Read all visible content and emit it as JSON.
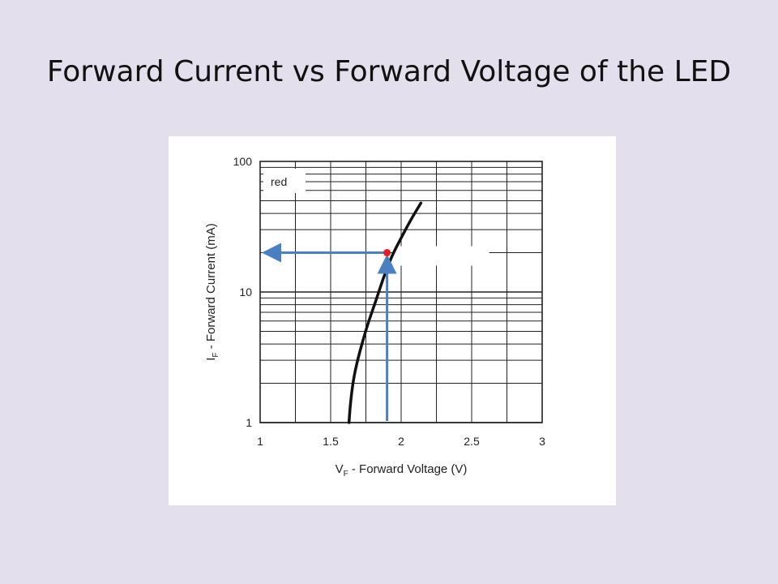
{
  "slide": {
    "title": "Forward Current vs Forward Voltage of the LED"
  },
  "chart_data": {
    "type": "line",
    "xlabel": "V_F - Forward Voltage (V)",
    "ylabel": "I_F - Forward Current (mA)",
    "xlabel_main": "V",
    "xlabel_sub": "F",
    "xlabel_rest": " - Forward Voltage (V)",
    "ylabel_main": "I",
    "ylabel_sub": "F",
    "ylabel_rest": " - Forward Current (mA)",
    "xlim": [
      1,
      3
    ],
    "ylim": [
      1,
      100
    ],
    "yscale": "log",
    "grid": true,
    "x_ticks": [
      1,
      1.5,
      2,
      2.5,
      3
    ],
    "x_tick_labels": [
      "1",
      "1.5",
      "2",
      "2.5",
      "3"
    ],
    "y_ticks": [
      1,
      10,
      100
    ],
    "y_tick_labels": [
      "1",
      "10",
      "100"
    ],
    "legend": {
      "label": "red",
      "placement": "top-left"
    },
    "series": [
      {
        "name": "red",
        "color": "#111111",
        "x": [
          1.63,
          1.64,
          1.66,
          1.69,
          1.73,
          1.77,
          1.82,
          1.87,
          1.93,
          2.0,
          2.07,
          2.14
        ],
        "y": [
          1,
          1.4,
          2.1,
          3.0,
          4.3,
          6.0,
          8.5,
          12.5,
          18.5,
          26,
          36,
          48
        ]
      }
    ],
    "annotations": {
      "operating_point": {
        "x": 1.9,
        "y": 20,
        "color": "#e02020"
      },
      "arrow_color": "#4a7fc1"
    }
  }
}
